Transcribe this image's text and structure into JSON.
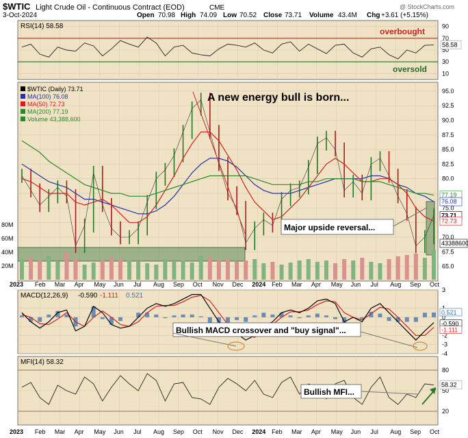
{
  "header": {
    "symbol": "$WTIC",
    "description": "Light Crude Oil - Continuous Contract (EOD)",
    "exchange": "CME",
    "date": "3-Oct-2024",
    "open_label": "Open",
    "open": "70.98",
    "high_label": "High",
    "high": "74.09",
    "low_label": "Low",
    "low": "70.52",
    "close_label": "Close",
    "close": "73.71",
    "volume_label": "Volume",
    "volume": "43.4M",
    "chg_label": "Chg",
    "chg": "+3.61 (+5.15%)",
    "watermark": "@ StockCharts.com"
  },
  "colors": {
    "panel_bg": "#f0e2c4",
    "grid": "#d8c9a8",
    "price_up": "#1f7a1f",
    "price_down": "#b01818",
    "ma100": "#2233aa",
    "ma50": "#d02020",
    "ma200": "#2a8a2a",
    "volume_up": "#7fb37f",
    "volume_down": "#d99090",
    "overbought": "#d02020",
    "oversold": "#2a6a2a",
    "macd_line": "#000000",
    "signal_line": "#d02020",
    "histogram": "#3a6fb0",
    "annotation_box": "#ffffff",
    "zone_fill": "#5a8a5a"
  },
  "chart_data": [
    {
      "type": "line",
      "panel": "RSI",
      "legend": "RSI(14) 58.58",
      "ylim": [
        0,
        100
      ],
      "y_ticks": [
        "90",
        "70",
        "50",
        "30",
        "10"
      ],
      "last_value_label": "58.58",
      "levels": [
        {
          "value": 70,
          "label": "overbought"
        },
        {
          "value": 30,
          "label": "oversold"
        }
      ],
      "x": [
        0,
        2,
        4,
        6,
        8,
        10,
        12,
        14,
        16,
        18,
        20,
        22,
        24,
        26,
        28,
        30,
        32,
        34,
        36,
        38,
        40,
        42,
        44,
        46,
        48,
        50,
        52,
        54,
        56,
        58,
        60,
        62,
        64,
        66,
        68,
        70,
        72,
        74,
        76,
        78,
        80,
        82,
        84,
        86,
        88,
        90,
        92
      ],
      "values": [
        55,
        60,
        43,
        38,
        55,
        50,
        48,
        62,
        57,
        40,
        52,
        66,
        60,
        55,
        72,
        62,
        40,
        55,
        58,
        45,
        42,
        40,
        52,
        60,
        58,
        55,
        62,
        50,
        45,
        60,
        64,
        48,
        60,
        52,
        44,
        58,
        60,
        45,
        38,
        52,
        55,
        42,
        35,
        50,
        45,
        58,
        58.58
      ]
    },
    {
      "type": "line",
      "panel": "Price",
      "title": "A new energy bull is born...",
      "legend": [
        "$WTIC (Daily) 73.71",
        "MA(100) 76.08",
        "MA(50) 72.73",
        "MA(200) 77.19",
        "Volume 43,388,600"
      ],
      "ylim": [
        62.5,
        96.5
      ],
      "y_ticks": [
        "95.0",
        "92.5",
        "90.0",
        "87.5",
        "85.0",
        "82.5",
        "80.0",
        "77.5",
        "75.0",
        "72.5",
        "70.0",
        "67.5",
        "65.0"
      ],
      "volume_ticks": [
        "80M",
        "60M",
        "40M",
        "20M"
      ],
      "x_labels": [
        "2023",
        "Feb",
        "Mar",
        "Apr",
        "May",
        "Jun",
        "Jul",
        "Aug",
        "Sep",
        "Oct",
        "Nov",
        "Dec",
        "2024",
        "Feb",
        "Mar",
        "Apr",
        "May",
        "Jun",
        "Jul",
        "Aug",
        "Sep",
        "Oct"
      ],
      "price_x": [
        0,
        2,
        4,
        6,
        8,
        10,
        12,
        14,
        16,
        18,
        20,
        22,
        24,
        26,
        28,
        30,
        32,
        34,
        36,
        38,
        40,
        42,
        44,
        46,
        48,
        50,
        52,
        54,
        56,
        58,
        60,
        62,
        64,
        66,
        68,
        70,
        72,
        74,
        76,
        78,
        80,
        82,
        84,
        86,
        88,
        90,
        92
      ],
      "series": [
        {
          "name": "$WTIC (Daily)",
          "values": [
            80.5,
            78.0,
            75.5,
            77.0,
            78.5,
            77.0,
            68.5,
            72.0,
            81.0,
            75.5,
            71.5,
            70.0,
            70.0,
            71.5,
            76.0,
            80.0,
            81.5,
            84.0,
            88.0,
            92.0,
            93.5,
            88.0,
            82.5,
            77.5,
            75.0,
            69.0,
            71.5,
            73.0,
            72.0,
            76.5,
            78.0,
            78.5,
            82.0,
            86.0,
            87.0,
            85.0,
            78.0,
            79.5,
            77.5,
            82.5,
            83.5,
            80.5,
            77.0,
            74.0,
            68.5,
            70.0,
            73.71
          ]
        },
        {
          "name": "MA(100)",
          "values": [
            82.5,
            81.5,
            80.5,
            79.5,
            79.0,
            78.5,
            77.5,
            76.5,
            76.5,
            76.0,
            75.5,
            75.0,
            74.5,
            74.0,
            74.0,
            74.5,
            75.5,
            77.0,
            79.0,
            81.0,
            82.5,
            83.5,
            83.5,
            83.0,
            82.0,
            80.5,
            79.0,
            78.0,
            77.5,
            77.5,
            77.5,
            78.0,
            78.5,
            79.0,
            79.5,
            80.0,
            80.0,
            80.0,
            80.0,
            80.5,
            80.5,
            80.0,
            79.0,
            78.5,
            77.5,
            77.0,
            76.08
          ]
        },
        {
          "name": "MA(50)",
          "values": [
            80.0,
            79.5,
            78.5,
            77.5,
            77.5,
            77.5,
            76.0,
            75.5,
            76.0,
            76.5,
            75.5,
            74.0,
            72.5,
            72.5,
            73.5,
            75.5,
            78.0,
            80.5,
            83.5,
            86.0,
            88.0,
            88.0,
            86.5,
            84.0,
            81.5,
            78.5,
            76.0,
            74.5,
            73.0,
            73.5,
            75.0,
            76.5,
            78.5,
            80.5,
            82.5,
            83.5,
            82.5,
            81.0,
            79.5,
            79.5,
            80.0,
            80.0,
            79.0,
            77.5,
            75.0,
            73.5,
            72.73
          ]
        },
        {
          "name": "MA(200)",
          "values": [
            86.5,
            85.5,
            84.5,
            83.0,
            82.0,
            81.0,
            80.0,
            79.0,
            78.5,
            78.0,
            77.5,
            77.5,
            77.0,
            77.0,
            77.0,
            77.5,
            78.0,
            78.5,
            79.0,
            79.5,
            80.0,
            80.5,
            80.5,
            80.5,
            80.5,
            80.5,
            80.0,
            79.5,
            79.0,
            79.0,
            79.0,
            79.0,
            79.5,
            79.5,
            80.0,
            80.0,
            80.0,
            80.0,
            79.5,
            79.5,
            79.5,
            79.0,
            78.5,
            78.0,
            77.5,
            77.5,
            77.19
          ]
        }
      ],
      "last_value_labels": [
        "77.19",
        "76.08",
        "73.71",
        "72.73",
        "43388600"
      ],
      "volume_values": [
        30,
        32,
        28,
        35,
        26,
        40,
        30,
        22,
        25,
        28,
        33,
        30,
        28,
        26,
        24,
        22,
        30,
        26,
        28,
        25,
        35,
        32,
        28,
        30,
        26,
        28,
        30,
        24,
        26,
        22,
        25,
        28,
        30,
        26,
        28,
        24,
        30,
        28,
        32,
        26,
        24,
        30,
        34,
        36,
        38,
        32,
        43.4
      ],
      "annotations": [
        "Major upside reversal..."
      ]
    },
    {
      "type": "line",
      "panel": "MACD",
      "legend": [
        "MACD(12,26,9)",
        "-0.590",
        "-1.111",
        "0.521"
      ],
      "ylim": [
        -4,
        3
      ],
      "y_ticks": [
        "3",
        "1",
        "0",
        "-1",
        "-2",
        "-3",
        "-4"
      ],
      "last_value_labels": [
        "0.521",
        "-0.590",
        "-1.111"
      ],
      "x": [
        0,
        2,
        4,
        6,
        8,
        10,
        12,
        14,
        16,
        18,
        20,
        22,
        24,
        26,
        28,
        30,
        32,
        34,
        36,
        38,
        40,
        42,
        44,
        46,
        48,
        50,
        52,
        54,
        56,
        58,
        60,
        62,
        64,
        66,
        68,
        70,
        72,
        74,
        76,
        78,
        80,
        82,
        84,
        86,
        88,
        90,
        92
      ],
      "series": [
        {
          "name": "MACD",
          "values": [
            0.5,
            -0.5,
            -1.2,
            -0.5,
            0.5,
            0.8,
            -1.5,
            -1.0,
            1.2,
            0.5,
            -0.8,
            -1.2,
            -1.0,
            0.0,
            1.0,
            1.5,
            1.2,
            1.5,
            2.0,
            2.5,
            2.5,
            1.0,
            -0.5,
            -1.5,
            -1.8,
            -2.5,
            -2.0,
            -1.0,
            -0.5,
            0.5,
            0.8,
            0.5,
            1.0,
            1.8,
            2.0,
            1.5,
            -0.5,
            0.0,
            -0.5,
            1.0,
            1.5,
            0.5,
            -0.5,
            -1.5,
            -2.5,
            -1.5,
            -0.59
          ]
        },
        {
          "name": "Signal",
          "values": [
            0.3,
            0.0,
            -0.7,
            -0.8,
            -0.2,
            0.5,
            -0.5,
            -1.0,
            0.0,
            0.7,
            0.0,
            -0.8,
            -1.0,
            -0.5,
            0.5,
            1.2,
            1.3,
            1.3,
            1.7,
            2.2,
            2.4,
            1.8,
            0.5,
            -0.8,
            -1.5,
            -2.0,
            -2.2,
            -1.5,
            -0.8,
            0.0,
            0.6,
            0.6,
            0.8,
            1.4,
            1.8,
            1.7,
            0.5,
            0.0,
            -0.3,
            0.4,
            1.1,
            0.9,
            0.0,
            -1.0,
            -2.0,
            -2.0,
            -1.111
          ]
        },
        {
          "name": "Histogram",
          "values": [
            0.2,
            -0.5,
            -0.5,
            0.3,
            0.7,
            0.3,
            -1.0,
            0.0,
            1.2,
            -0.2,
            -0.8,
            -0.4,
            0.0,
            0.5,
            0.5,
            0.3,
            -0.1,
            0.2,
            0.3,
            0.3,
            0.1,
            -0.8,
            -1.0,
            -0.7,
            -0.3,
            -0.5,
            0.2,
            0.5,
            0.3,
            0.5,
            0.2,
            -0.1,
            0.2,
            0.4,
            0.2,
            -0.2,
            -1.0,
            0.0,
            -0.2,
            0.6,
            0.4,
            -0.4,
            -0.5,
            -0.5,
            -0.5,
            0.5,
            0.521
          ]
        }
      ],
      "annotations": [
        "Bullish MACD crossover and \"buy signal\"..."
      ]
    },
    {
      "type": "line",
      "panel": "MFI",
      "legend": "MFI(14) 58.32",
      "ylim": [
        0,
        100
      ],
      "y_ticks": [
        "80",
        "50",
        "20"
      ],
      "last_value_label": "58.32",
      "x_labels": [
        "2023",
        "Feb",
        "Mar",
        "Apr",
        "May",
        "Jun",
        "Jul",
        "Aug",
        "Sep",
        "Oct",
        "Nov",
        "Dec",
        "2024",
        "Feb",
        "Mar",
        "Apr",
        "May",
        "Jun",
        "Jul",
        "Aug",
        "Sep",
        "Oct"
      ],
      "x": [
        0,
        2,
        4,
        6,
        8,
        10,
        12,
        14,
        16,
        18,
        20,
        22,
        24,
        26,
        28,
        30,
        32,
        34,
        36,
        38,
        40,
        42,
        44,
        46,
        48,
        50,
        52,
        54,
        56,
        58,
        60,
        62,
        64,
        66,
        68,
        70,
        72,
        74,
        76,
        78,
        80,
        82,
        84,
        86,
        88,
        90,
        92
      ],
      "values": [
        55,
        62,
        40,
        30,
        58,
        50,
        45,
        70,
        60,
        35,
        55,
        72,
        60,
        50,
        75,
        65,
        35,
        60,
        62,
        40,
        38,
        30,
        55,
        68,
        60,
        50,
        65,
        45,
        40,
        62,
        70,
        45,
        60,
        55,
        38,
        60,
        65,
        40,
        30,
        55,
        70,
        40,
        30,
        45,
        40,
        60,
        58.32
      ],
      "annotations": [
        "Bullish MFI..."
      ]
    }
  ]
}
